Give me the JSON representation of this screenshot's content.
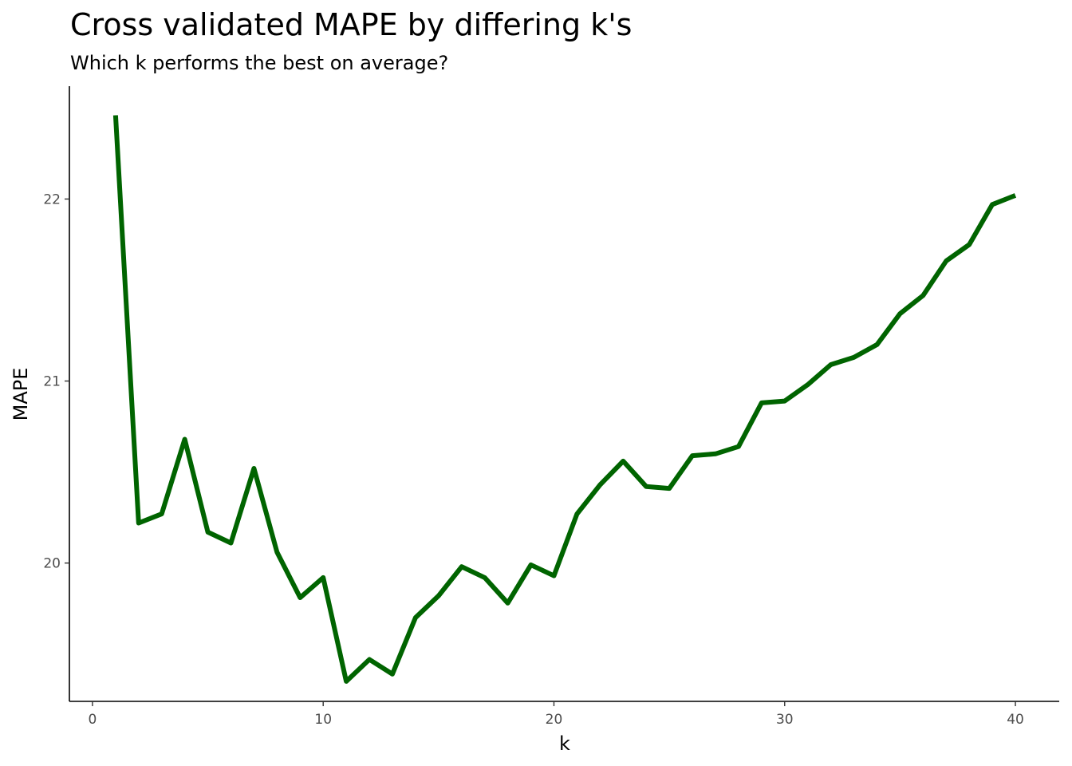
{
  "chart_data": {
    "type": "line",
    "title": "Cross validated MAPE by differing k's",
    "subtitle": "Which k performs the best on average?",
    "xlabel": "k",
    "ylabel": "MAPE",
    "xlim": [
      -1,
      41.9
    ],
    "ylim": [
      19.24,
      22.62
    ],
    "xticks": [
      0,
      10,
      20,
      30,
      40
    ],
    "yticks": [
      20,
      21,
      22
    ],
    "grid": false,
    "legend": "none",
    "line_color": "#006400",
    "series": [
      {
        "x": [
          1,
          2,
          3,
          4,
          5,
          6,
          7,
          8,
          9,
          10,
          11,
          12,
          13,
          14,
          15,
          16,
          17,
          18,
          19,
          20,
          21,
          22,
          23,
          24,
          25,
          26,
          27,
          28,
          29,
          30,
          31,
          32,
          33,
          34,
          35,
          36,
          37,
          38,
          39,
          40
        ],
        "values": [
          22.46,
          20.22,
          20.27,
          20.68,
          20.17,
          20.11,
          20.52,
          20.06,
          19.81,
          19.92,
          19.35,
          19.47,
          19.39,
          19.7,
          19.82,
          19.98,
          19.92,
          19.78,
          19.99,
          19.93,
          20.27,
          20.43,
          20.56,
          20.42,
          20.41,
          20.59,
          20.6,
          20.64,
          20.88,
          20.89,
          20.98,
          21.09,
          21.13,
          21.2,
          21.37,
          21.47,
          21.66,
          21.75,
          21.97,
          22.02
        ]
      }
    ]
  }
}
